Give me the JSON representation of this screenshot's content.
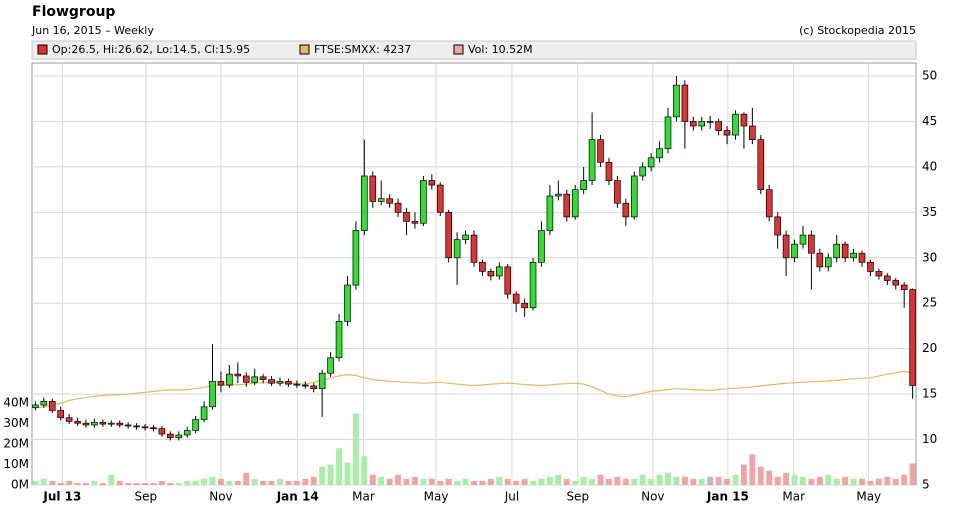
{
  "chart_data": {
    "type": "candlestick",
    "title": "Flowgroup",
    "subtitle": "Jun 16, 2015 – Weekly",
    "credit": "(c) Stockopedia 2015",
    "legend": [
      "Op:26.5, Hi:26.62, Lo:14.5, Cl:15.95",
      "FTSE:SMXX: 4237",
      "Vol: 10.52M"
    ],
    "up_color": "#33dd33",
    "down_color": "#dd3333",
    "flat_color": "#999999",
    "volume_up_color": "#a8eea8",
    "volume_down_color": "#f2a4a4",
    "volume_flat_color": "#bbbbbb",
    "ftse_color": "#e8b86a",
    "grid": true,
    "open": [
      13.5,
      13.8,
      14.2,
      13.2,
      12.4,
      12.0,
      11.8,
      11.6,
      11.9,
      11.7,
      11.8,
      11.6,
      11.5,
      11.4,
      11.3,
      11.2,
      10.6,
      10.2,
      10.5,
      11.0,
      12.2,
      13.6,
      16.4,
      16.0,
      17.2,
      17.0,
      16.3,
      16.9,
      16.6,
      16.2,
      16.4,
      16.1,
      16.0,
      15.9,
      15.6,
      17.3,
      19.0,
      23.0,
      27.0,
      33.0,
      39.0,
      36.2,
      36.5,
      36.0,
      35.0,
      34.0,
      33.8,
      38.5,
      38.0,
      35.0,
      30.0,
      32.0,
      32.5,
      29.5,
      28.5,
      28.0,
      29.0,
      26.0,
      25.0,
      24.5,
      29.5,
      33.0,
      36.8,
      37.0,
      34.5,
      37.5,
      38.5,
      43.0,
      40.5,
      38.5,
      36.0,
      34.5,
      39.0,
      40.0,
      41.0,
      42.0,
      45.5,
      49.0,
      45.0,
      44.5,
      45.0,
      45.0,
      44.0,
      43.5,
      45.8,
      44.5,
      43.0,
      37.5,
      34.5,
      32.5,
      30.0,
      31.5,
      32.5,
      30.5,
      29.0,
      30.0,
      31.5,
      30.0,
      30.5,
      29.5,
      28.5,
      28.0,
      27.5,
      27.0,
      26.5
    ],
    "high": [
      14.2,
      14.6,
      14.5,
      13.6,
      12.8,
      12.4,
      12.2,
      12.3,
      12.2,
      12.1,
      12.1,
      11.9,
      11.8,
      11.7,
      11.6,
      11.5,
      10.9,
      10.9,
      11.4,
      12.6,
      14.2,
      20.5,
      17.5,
      18.2,
      18.5,
      17.4,
      17.8,
      17.2,
      17.0,
      16.8,
      16.7,
      16.5,
      16.4,
      16.2,
      17.7,
      19.6,
      23.8,
      28.0,
      34.0,
      43.0,
      39.5,
      38.5,
      37.0,
      36.5,
      35.5,
      35.0,
      39.0,
      39.2,
      38.3,
      35.3,
      32.8,
      33.0,
      33.0,
      29.8,
      28.8,
      29.5,
      29.3,
      26.3,
      25.5,
      30.0,
      34.0,
      38.0,
      38.5,
      37.5,
      38.0,
      40.0,
      46.0,
      43.5,
      41.0,
      39.0,
      36.5,
      39.5,
      40.5,
      41.5,
      42.8,
      46.5,
      50.0,
      49.5,
      45.5,
      45.5,
      45.6,
      45.3,
      44.5,
      46.2,
      46.0,
      46.5,
      43.5,
      38.0,
      35.0,
      33.0,
      32.0,
      33.5,
      33.0,
      31.0,
      30.5,
      32.5,
      31.8,
      31.0,
      30.8,
      29.8,
      28.8,
      28.3,
      27.8,
      27.3,
      26.62
    ],
    "low": [
      13.2,
      13.5,
      12.9,
      12.1,
      11.7,
      11.5,
      11.3,
      11.3,
      11.4,
      11.4,
      11.3,
      11.2,
      11.1,
      11.0,
      10.9,
      10.3,
      9.9,
      9.9,
      10.2,
      10.7,
      11.9,
      13.3,
      15.2,
      15.7,
      16.2,
      15.8,
      16.0,
      16.2,
      15.9,
      15.9,
      15.8,
      15.7,
      15.6,
      15.2,
      12.5,
      16.9,
      18.6,
      22.5,
      26.5,
      32.5,
      35.5,
      35.8,
      35.5,
      34.5,
      32.5,
      33.2,
      33.5,
      37.5,
      34.6,
      29.5,
      27.0,
      31.5,
      29.0,
      28.0,
      27.5,
      27.6,
      25.5,
      24.0,
      23.5,
      24.2,
      29.0,
      32.5,
      36.3,
      34.0,
      34.2,
      37.0,
      38.0,
      40.0,
      38.0,
      35.5,
      33.5,
      34.2,
      38.5,
      39.5,
      40.5,
      41.5,
      45.0,
      42.0,
      44.0,
      44.0,
      44.2,
      43.5,
      42.5,
      43.0,
      42.0,
      42.5,
      37.0,
      34.0,
      31.0,
      28.0,
      29.5,
      31.0,
      26.5,
      28.5,
      28.5,
      29.5,
      29.5,
      29.6,
      29.0,
      28.0,
      27.6,
      27.0,
      26.5,
      24.5,
      14.5
    ],
    "close": [
      13.8,
      14.2,
      13.2,
      12.4,
      12.0,
      11.8,
      11.6,
      11.9,
      11.7,
      11.8,
      11.6,
      11.5,
      11.4,
      11.3,
      11.2,
      10.6,
      10.2,
      10.5,
      11.0,
      12.2,
      13.6,
      16.4,
      16.0,
      17.2,
      17.0,
      16.3,
      16.9,
      16.6,
      16.2,
      16.4,
      16.1,
      16.0,
      15.9,
      15.6,
      17.3,
      19.0,
      23.0,
      27.0,
      33.0,
      39.0,
      36.2,
      36.5,
      36.0,
      35.0,
      34.0,
      33.8,
      38.5,
      38.0,
      35.0,
      30.0,
      32.0,
      32.5,
      29.5,
      28.5,
      28.0,
      29.0,
      26.0,
      25.0,
      24.5,
      29.5,
      33.0,
      36.8,
      37.0,
      34.5,
      37.5,
      38.5,
      43.0,
      40.5,
      38.5,
      36.0,
      34.5,
      39.0,
      40.0,
      41.0,
      42.0,
      45.5,
      49.0,
      45.0,
      44.5,
      45.0,
      45.0,
      44.0,
      43.5,
      45.8,
      44.5,
      43.0,
      37.5,
      34.5,
      32.5,
      30.0,
      31.5,
      32.5,
      30.5,
      29.0,
      30.0,
      31.5,
      30.0,
      30.5,
      29.5,
      28.5,
      28.0,
      27.5,
      27.0,
      26.5,
      15.95
    ],
    "volume": [
      2,
      3,
      2,
      1,
      2,
      1,
      1,
      2,
      1,
      5,
      2,
      1,
      1,
      1,
      1,
      2,
      1,
      1,
      2,
      2,
      3,
      4,
      3,
      2,
      2,
      6,
      3,
      2,
      2,
      3,
      2,
      2,
      3,
      4,
      9,
      10,
      18,
      11,
      35,
      14,
      5,
      4,
      3,
      5,
      3,
      4,
      3,
      3,
      2,
      3,
      2,
      3,
      2,
      2,
      3,
      4,
      3,
      2,
      3,
      2,
      3,
      4,
      5,
      3,
      2,
      4,
      3,
      5,
      3,
      4,
      3,
      3,
      5,
      3,
      5,
      6,
      4,
      4,
      3,
      3,
      4,
      4,
      3,
      5,
      10,
      15,
      9,
      7,
      4,
      6,
      5,
      4,
      3,
      4,
      5,
      3,
      4,
      3,
      3,
      2,
      3,
      4,
      3,
      5,
      10.52
    ],
    "ftse": [
      3847,
      3860,
      3880,
      3900,
      3930,
      3950,
      3960,
      3975,
      3985,
      3990,
      3995,
      4000,
      4010,
      4020,
      4030,
      4040,
      4045,
      4045,
      4050,
      4060,
      4075,
      4090,
      4100,
      4095,
      4105,
      4110,
      4120,
      4125,
      4130,
      4125,
      4120,
      4115,
      4110,
      4130,
      4150,
      4180,
      4200,
      4215,
      4205,
      4180,
      4160,
      4150,
      4140,
      4135,
      4130,
      4125,
      4120,
      4125,
      4130,
      4120,
      4110,
      4100,
      4095,
      4100,
      4110,
      4115,
      4120,
      4115,
      4105,
      4100,
      4095,
      4100,
      4110,
      4115,
      4120,
      4110,
      4080,
      4040,
      4000,
      3980,
      3970,
      3990,
      4010,
      4030,
      4040,
      4050,
      4060,
      4055,
      4050,
      4045,
      4040,
      4050,
      4060,
      4065,
      4070,
      4080,
      4090,
      4100,
      4110,
      4120,
      4125,
      4130,
      4135,
      4140,
      4145,
      4150,
      4160,
      4170,
      4175,
      4180,
      4200,
      4220,
      4235,
      4250,
      4237
    ],
    "xlim": [
      -0.4,
      104.4
    ],
    "xticks": [
      {
        "value": 3.2,
        "label": "Jul 13"
      },
      {
        "value": 13.1,
        "label": "Sep"
      },
      {
        "value": 22,
        "label": "Nov"
      },
      {
        "value": 31.1,
        "label": "Jan 14"
      },
      {
        "value": 38.9,
        "label": "Mar"
      },
      {
        "value": 47.5,
        "label": "May"
      },
      {
        "value": 56.5,
        "label": "Jul"
      },
      {
        "value": 64.3,
        "label": "Sep"
      },
      {
        "value": 73.2,
        "label": "Nov"
      },
      {
        "value": 82.1,
        "label": "Jan 15"
      },
      {
        "value": 89.9,
        "label": "Mar"
      },
      {
        "value": 98.8,
        "label": "May"
      }
    ],
    "ylim": [
      5,
      50
    ],
    "yticks": [
      5,
      10,
      15,
      20,
      25,
      30,
      35,
      40,
      45,
      50
    ],
    "vlim": [
      0,
      200
    ],
    "vticks": [
      {
        "value": 0,
        "label": "0M"
      },
      {
        "value": 10,
        "label": "10M"
      },
      {
        "value": 20,
        "label": "20M"
      },
      {
        "value": 30,
        "label": "30M"
      },
      {
        "value": 40,
        "label": "40M"
      }
    ],
    "y2lim": [
      3000,
      7500
    ]
  }
}
